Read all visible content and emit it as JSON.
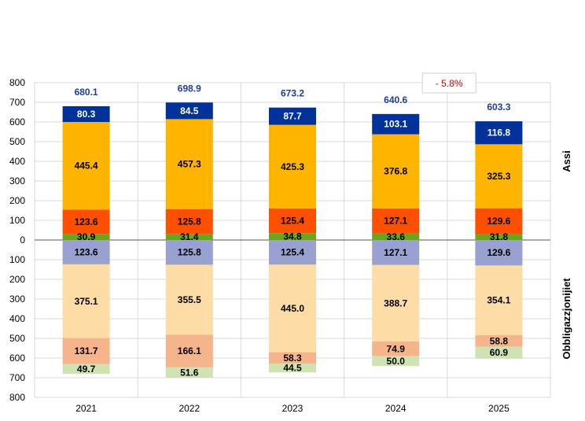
{
  "chart_data": {
    "type": "bar",
    "stacked": true,
    "diverging": true,
    "categories": [
      "2021",
      "2022",
      "2023",
      "2024",
      "2025"
    ],
    "y_tick_labels": [
      "800",
      "700",
      "600",
      "500",
      "400",
      "300",
      "200",
      "100",
      "0",
      "100",
      "200",
      "300",
      "400",
      "500",
      "600",
      "700",
      "800"
    ],
    "ylim": [
      -800,
      800
    ],
    "grid": true,
    "side_labels": {
      "positive": "Assi",
      "negative": "Obbligazzjonijiet"
    },
    "annotation": {
      "text": "- 5.8%",
      "category": "2024"
    },
    "totals": [
      "680.1",
      "698.9",
      "673.2",
      "640.6",
      "603.3"
    ],
    "assets": [
      {
        "color": "#6aa51b",
        "label_color": "#000000",
        "values": [
          30.9,
          31.4,
          34.8,
          33.6,
          31.8
        ],
        "labels": [
          "30.9",
          "31.4",
          "34.8",
          "33.6",
          "31.8"
        ]
      },
      {
        "color": "#ff4f00",
        "label_color": "#000000",
        "values": [
          123.6,
          125.8,
          125.4,
          127.1,
          129.6
        ],
        "labels": [
          "123.6",
          "125.8",
          "125.4",
          "127.1",
          "129.6"
        ]
      },
      {
        "color": "#ffb400",
        "label_color": "#000000",
        "values": [
          445.4,
          457.3,
          425.3,
          376.8,
          325.3
        ],
        "labels": [
          "445.4",
          "457.3",
          "425.3",
          "376.8",
          "325.3"
        ]
      },
      {
        "color": "#003299",
        "label_color": "#ffffff",
        "values": [
          80.3,
          84.5,
          87.7,
          103.1,
          116.8
        ],
        "labels": [
          "80.3",
          "84.5",
          "87.7",
          "103.1",
          "116.8"
        ]
      }
    ],
    "liabilities": [
      {
        "color": "#98a1d0",
        "label_color": "#000000",
        "values": [
          123.6,
          125.8,
          125.4,
          127.1,
          129.6
        ],
        "labels": [
          "123.6",
          "125.8",
          "125.4",
          "127.1",
          "129.6"
        ]
      },
      {
        "color": "#fddca5",
        "label_color": "#000000",
        "values": [
          375.1,
          355.5,
          445.0,
          388.7,
          354.1
        ],
        "labels": [
          "375.1",
          "355.5",
          "445.0",
          "388.7",
          "354.1"
        ]
      },
      {
        "color": "#f6b48b",
        "label_color": "#000000",
        "values": [
          131.7,
          166.1,
          58.3,
          74.9,
          58.8
        ],
        "labels": [
          "131.7",
          "166.1",
          "58.3",
          "74.9",
          "58.8"
        ]
      },
      {
        "color": "#cfe2b1",
        "label_color": "#000000",
        "values": [
          49.7,
          51.6,
          44.5,
          50.0,
          60.9
        ],
        "labels": [
          "49.7",
          "51.6",
          "44.5",
          "50.0",
          "60.9"
        ]
      }
    ]
  }
}
